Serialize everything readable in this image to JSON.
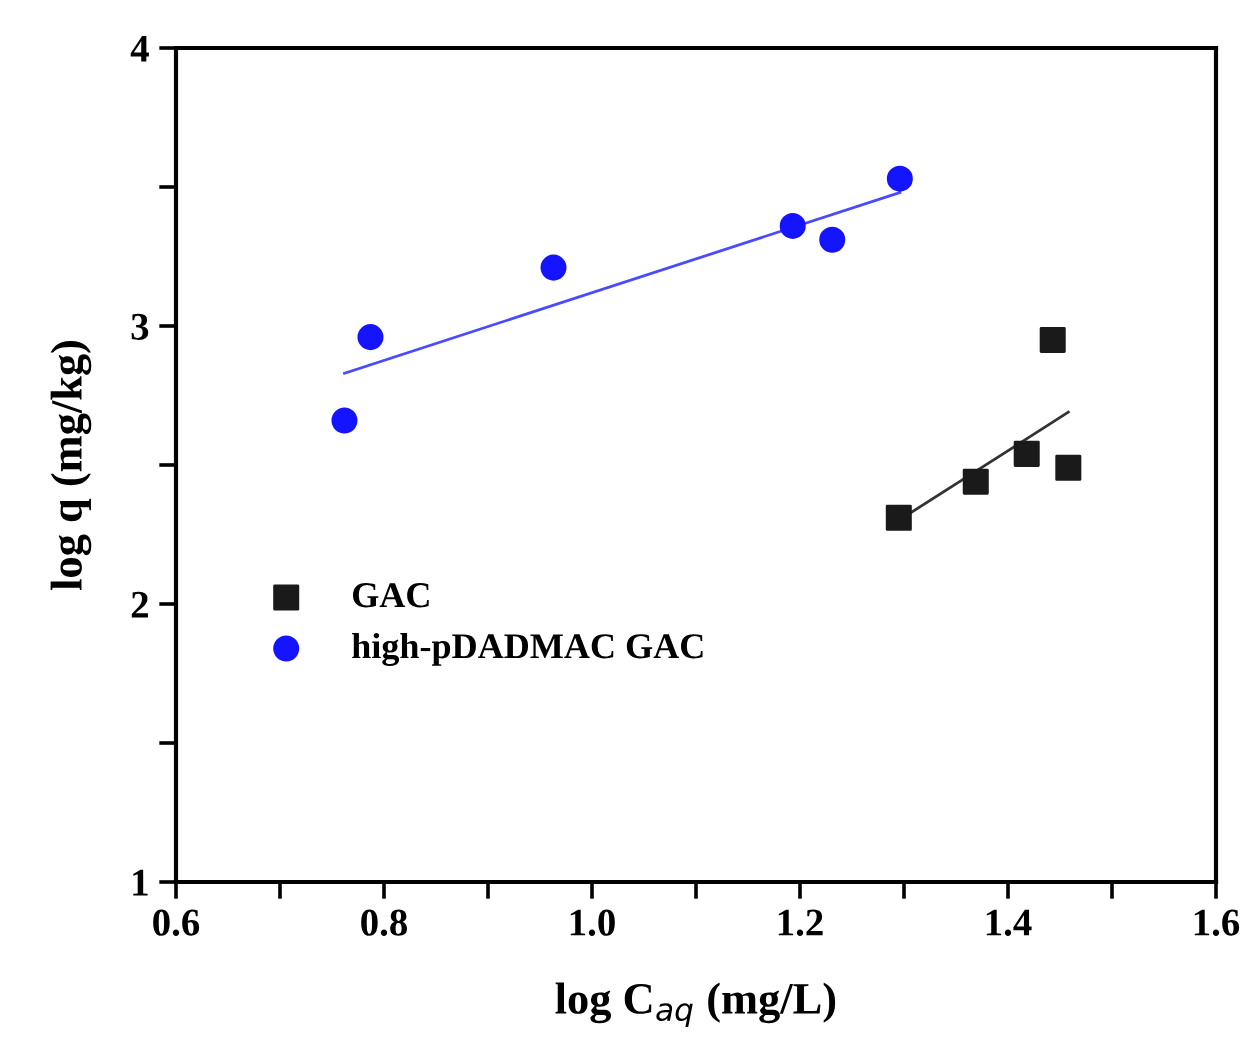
{
  "chart_data": {
    "type": "scatter",
    "xlabel": "log C$_{aq}$ (mg/L)",
    "ylabel": "log q (mg/kg)",
    "xlim": [
      0.6,
      1.6
    ],
    "ylim": [
      1,
      4
    ],
    "xticks": [
      0.6,
      {
        "value": 0.7,
        "label": null
      },
      0.8,
      {
        "value": 0.9,
        "label": null
      },
      {
        "value": 1,
        "label": "1.0"
      },
      {
        "value": 1.1,
        "label": null
      },
      1.2,
      {
        "value": 1.3,
        "label": null
      },
      1.4,
      {
        "value": 1.5,
        "label": null
      },
      1.6
    ],
    "yticks": [
      1,
      {
        "value": 1.5,
        "label": null
      },
      2,
      {
        "value": 2.5,
        "label": null
      },
      3,
      {
        "value": 3.5,
        "label": null
      },
      4
    ],
    "legend": "bottom left",
    "grid": false,
    "series": [
      {
        "name": "GAC",
        "color": "#1a1a1a",
        "marker": "square",
        "x": [
          1.295,
          1.369,
          1.418,
          1.443,
          1.458
        ],
        "values": [
          2.31,
          2.44,
          2.54,
          2.95,
          2.49
        ]
      },
      {
        "name": "high-pDADMAC GAC",
        "color": "#1414ff",
        "marker": "circle",
        "x": [
          0.762,
          0.787,
          0.963,
          1.193,
          1.231,
          1.296
        ],
        "values": [
          2.66,
          2.96,
          3.21,
          3.36,
          3.31,
          3.53
        ]
      },
      {
        "type": "line",
        "color": "#333333",
        "marker": "none",
        "x": [
          1.303,
          1.458
        ],
        "values": [
          2.32,
          2.69
        ]
      },
      {
        "type": "line",
        "color": "#4a4aff",
        "marker": "none",
        "x": [
          0.762,
          1.296
        ],
        "values": [
          2.83,
          3.48
        ]
      }
    ]
  }
}
